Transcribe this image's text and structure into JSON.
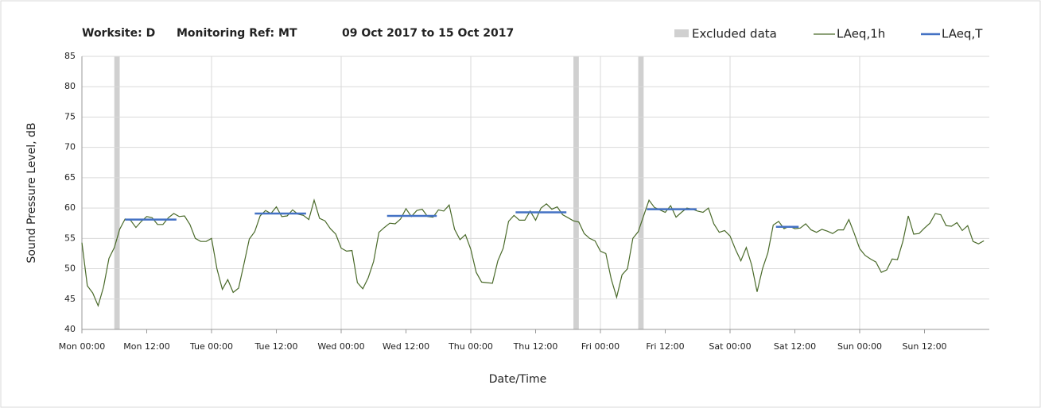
{
  "chart_data": {
    "type": "line",
    "title_parts": [
      "Worksite: D",
      "Monitoring Ref: MT",
      "09 Oct 2017 to 15 Oct 2017"
    ],
    "x_label": "Date/Time",
    "y_label": "Sound Pressure Level, dB",
    "xlim": [
      0,
      168
    ],
    "ylim": [
      40,
      85
    ],
    "yticks": [
      40,
      45,
      50,
      55,
      60,
      65,
      70,
      75,
      80,
      85
    ],
    "xticks": [
      {
        "value": 0,
        "label": "Mon 00:00"
      },
      {
        "value": 12,
        "label": "Mon 12:00"
      },
      {
        "value": 24,
        "label": "Tue 00:00"
      },
      {
        "value": 36,
        "label": "Tue 12:00"
      },
      {
        "value": 48,
        "label": "Wed 00:00"
      },
      {
        "value": 60,
        "label": "Wed 12:00"
      },
      {
        "value": 72,
        "label": "Thu 00:00"
      },
      {
        "value": 84,
        "label": "Thu 12:00"
      },
      {
        "value": 96,
        "label": "Fri 00:00"
      },
      {
        "value": 108,
        "label": "Fri 12:00"
      },
      {
        "value": 120,
        "label": "Sat 00:00"
      },
      {
        "value": 132,
        "label": "Sat 12:00"
      },
      {
        "value": 144,
        "label": "Sun 00:00"
      },
      {
        "value": 156,
        "label": "Sun 12:00"
      }
    ],
    "grid": true,
    "excluded": {
      "name": "Excluded data",
      "color": "#d0d0d0",
      "ranges": [
        [
          6,
          7
        ],
        [
          91,
          92
        ],
        [
          103,
          104
        ]
      ]
    },
    "series": [
      {
        "name": "LAeq,1h",
        "color": "#4a6a2a",
        "x": [
          0,
          1,
          2,
          3,
          4,
          5,
          6,
          7,
          8,
          9,
          10,
          11,
          12,
          13,
          14,
          15,
          16,
          17,
          18,
          19,
          20,
          21,
          22,
          23,
          24,
          25,
          26,
          27,
          28,
          29,
          30,
          31,
          32,
          33,
          34,
          35,
          36,
          37,
          38,
          39,
          40,
          41,
          42,
          43,
          44,
          45,
          46,
          47,
          48,
          49,
          50,
          51,
          52,
          53,
          54,
          55,
          56,
          57,
          58,
          59,
          60,
          61,
          62,
          63,
          64,
          65,
          66,
          67,
          68,
          69,
          70,
          71,
          72,
          73,
          74,
          75,
          76,
          77,
          78,
          79,
          80,
          81,
          82,
          83,
          84,
          85,
          86,
          87,
          88,
          89,
          90,
          91,
          92,
          93,
          94,
          95,
          96,
          97,
          98,
          99,
          100,
          101,
          102,
          103,
          104,
          105,
          106,
          107,
          108,
          109,
          110,
          111,
          112,
          113,
          114,
          115,
          116,
          117,
          118,
          119,
          120,
          121,
          122,
          123,
          124,
          125,
          126,
          127,
          128,
          129,
          130,
          131,
          132,
          133,
          134,
          135,
          136,
          137,
          138,
          139,
          140,
          141,
          142,
          143,
          144,
          145,
          146,
          147,
          148,
          149,
          150,
          151,
          152,
          153,
          154,
          155,
          156,
          157,
          158,
          159,
          160,
          161,
          162,
          163,
          164,
          165,
          166,
          167
        ],
        "values": [
          54.3,
          47.2,
          46,
          43.9,
          47,
          51.7,
          53.5,
          56.5,
          58.2,
          58,
          56.8,
          57.8,
          58.6,
          58.4,
          57.3,
          57.3,
          58.4,
          59.1,
          58.6,
          58.7,
          57.3,
          55,
          54.5,
          54.5,
          55,
          50,
          46.6,
          48.2,
          46.1,
          46.8,
          50.8,
          54.9,
          56.1,
          58.7,
          59.6,
          59.1,
          60.2,
          58.6,
          58.7,
          59.7,
          59,
          58.8,
          58.1,
          61.3,
          58.3,
          57.9,
          56.6,
          55.7,
          53.4,
          52.9,
          53,
          47.7,
          46.7,
          48.5,
          51.2,
          56,
          56.8,
          57.5,
          57.4,
          58.2,
          59.9,
          58.6,
          59.6,
          59.8,
          58.6,
          58.5,
          59.7,
          59.5,
          60.5,
          56.5,
          54.8,
          55.6,
          53.2,
          49.4,
          47.8,
          47.7,
          47.6,
          51.3,
          53.4,
          57.8,
          58.8,
          58,
          58,
          59.5,
          58,
          60,
          60.7,
          59.8,
          60.2,
          58.9,
          58.4,
          57.9,
          57.7,
          55.8,
          55,
          54.6,
          52.9,
          52.5,
          48.3,
          45.3,
          49,
          50,
          55,
          56.1,
          58.7,
          61.3,
          60.1,
          59.7,
          59.3,
          60.4,
          58.5,
          59.3,
          60,
          59.8,
          59.5,
          59.3,
          60,
          57.4,
          56,
          56.3,
          55.4,
          53.2,
          51.3,
          53.5,
          50.6,
          46.2,
          50,
          52.6,
          57.2,
          57.8,
          56.6,
          57,
          56.6,
          56.7,
          57.4,
          56.4,
          56,
          56.5,
          56.2,
          55.8,
          56.4,
          56.4,
          58.1,
          55.8,
          53.3,
          52.2,
          51.6,
          51.1,
          49.4,
          49.8,
          51.6,
          51.5,
          54.5,
          58.7,
          55.7,
          55.8,
          56.7,
          57.5,
          59.1,
          58.9,
          57.1,
          57,
          57.6,
          56.3,
          57.1,
          54.5,
          54.1,
          54.6
        ]
      },
      {
        "name": "LAeq,T",
        "color": "#4472c4",
        "segments": [
          {
            "x": [
              8,
              17.5
            ],
            "value": 58.1
          },
          {
            "x": [
              32,
              41.5
            ],
            "value": 59.1
          },
          {
            "x": [
              56.5,
              65.7
            ],
            "value": 58.7
          },
          {
            "x": [
              80.3,
              89.7
            ],
            "value": 59.3
          },
          {
            "x": [
              104.6,
              113.8
            ],
            "value": 59.8
          },
          {
            "x": [
              128.5,
              132.7
            ],
            "value": 56.9
          }
        ]
      }
    ]
  }
}
